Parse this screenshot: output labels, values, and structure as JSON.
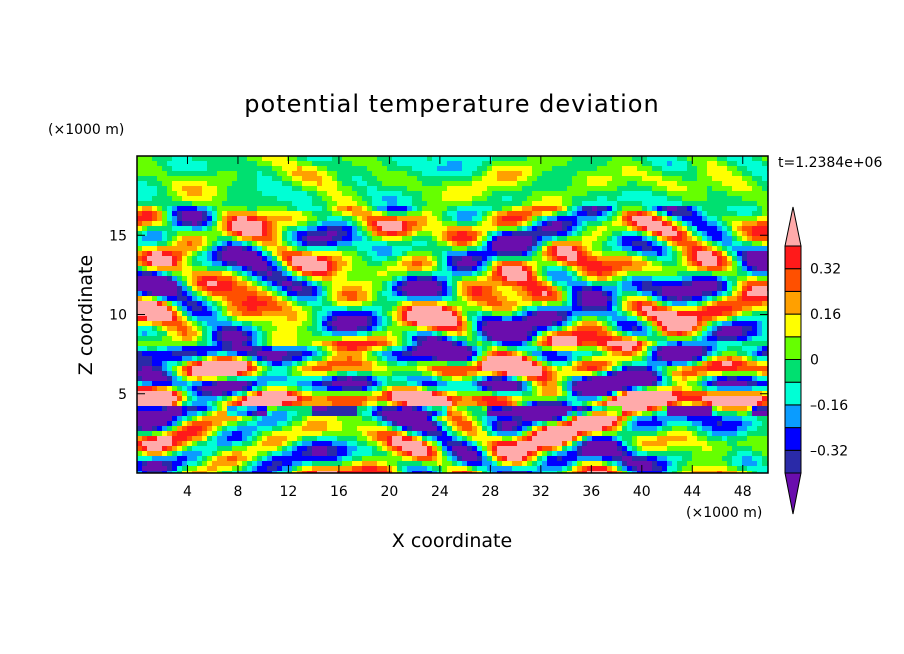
{
  "chart_data": {
    "type": "heatmap",
    "title": "potential temperature deviation",
    "xlabel": "X coordinate",
    "ylabel": "Z coordinate",
    "x_unit": "(×1000 m)",
    "y_unit": "(×1000 m)",
    "time_label": "t=1.2384e+06",
    "xlim": [
      0,
      50
    ],
    "ylim": [
      0,
      20
    ],
    "x_ticks": [
      4,
      8,
      12,
      16,
      20,
      24,
      28,
      32,
      36,
      40,
      44,
      48
    ],
    "y_ticks": [
      5,
      10,
      15
    ],
    "colorbar": {
      "levels": [
        -0.4,
        -0.32,
        -0.24,
        -0.16,
        -0.08,
        0,
        0.08,
        0.16,
        0.24,
        0.32,
        0.4
      ],
      "labels": [
        "0.32",
        "0.16",
        "0",
        "–0.16",
        "–0.32"
      ],
      "label_values": [
        0.32,
        0.16,
        0,
        -0.16,
        -0.32
      ],
      "colors_low_to_high": [
        "#6a0dad",
        "#2a2aa8",
        "#0000ff",
        "#0a9cff",
        "#00ffd5",
        "#00e070",
        "#66ff00",
        "#ffff00",
        "#ffa000",
        "#ff5000",
        "#ff1a1a",
        "#ffaaaa"
      ],
      "extend": "both"
    },
    "grid": false
  }
}
